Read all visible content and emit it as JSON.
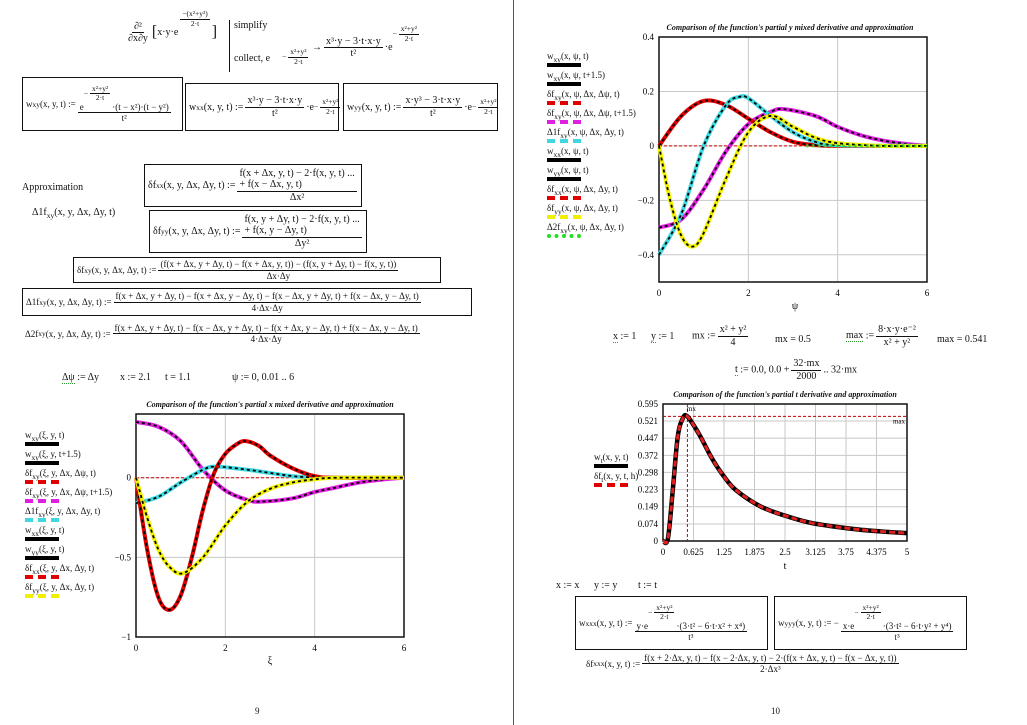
{
  "common": {
    "minus": "−",
    "assign": ":=",
    "dots": "...",
    "arrow": "→",
    "e": "e",
    "dot_e": "·e"
  },
  "page1": {
    "derivation": {
      "op_num": "∂²",
      "op_den": "∂x∂y",
      "body": "x·y·e",
      "exp_num": "−(x²+y²)",
      "exp_den": "2·t",
      "kw1": "simplify",
      "kw2": "collect, e",
      "kw2_exp_num": "x²+y²",
      "kw2_exp_den": "2·t",
      "res_num": "x³·y − 3·t·x·y",
      "res_den": "t²",
      "res_exp_num": "x²+y²",
      "res_exp_den": "2·t"
    },
    "wxy": {
      "f": "w",
      "sub": "xy",
      "args": "(x, y, t) :=",
      "exp_num": "x²+y²",
      "exp_den": "2·t",
      "tail": "·(t − x²)·(t − y²)",
      "den": "t²"
    },
    "wxx": {
      "f": "w",
      "sub": "xx",
      "args": "(x, y, t) :=",
      "num": "x³·y − 3·t·x·y",
      "den": "t²",
      "exp_num": "x²+y²",
      "exp_den": "2·t"
    },
    "wyy": {
      "f": "w",
      "sub": "yy",
      "args": "(x, y, t) :=",
      "num": "x·y³ − 3·t·x·y",
      "den": "t²",
      "exp_num": "x²+y²",
      "exp_den": "2·t"
    },
    "approx_label": "Approximation",
    "delta1_ref": {
      "f": "Δ1f",
      "sub": "xy",
      "args": "(x, y, Δx, Δy, t)"
    },
    "dfxx": {
      "f": "δf",
      "sub": "xx",
      "args": "(x, y, Δx, Δy, t) :=",
      "num1": "f(x + Δx, y, t) − 2·f(x, y, t) ...",
      "num2": "+ f(x − Δx, y, t)",
      "den": "Δx²"
    },
    "dfyy": {
      "f": "δf",
      "sub": "yy",
      "args": "(x, y, Δx, Δy, t) :=",
      "num1": "f(x, y + Δy, t) − 2·f(x, y, t) ...",
      "num2": "+ f(x, y − Δy, t)",
      "den": "Δy²"
    },
    "dfxy": {
      "f": "δf",
      "sub": "xy",
      "args": "(x, y, Δx, Δy, t) :=",
      "num": "(f(x + Δx, y + Δy, t) − f(x + Δx, y, t)) − (f(x, y + Δy, t) − f(x, y, t))",
      "den": "Δx·Δy"
    },
    "d1fxy": {
      "f": "Δ1f",
      "sub": "xy",
      "args": "(x, y, Δx, Δy, t) :=",
      "num": "f(x + Δx, y + Δy, t) − f(x + Δx, y − Δy, t) − f(x − Δx, y + Δy, t) + f(x − Δx, y − Δy, t)",
      "den": "4·Δx·Δy"
    },
    "d2fxy": {
      "f": "Δ2f",
      "sub": "xy",
      "args": "(x, y, Δx, Δy, t) :=",
      "num": "f(x + Δx, y + Δy, t) − f(x − Δx, y + Δy, t) − f(x + Δx, y − Δy, t) + f(x − Δx, y − Δy, t)",
      "den": "4·Δx·Δy"
    },
    "defs": {
      "dpsi_lhs": "Δψ",
      "dpsi_rhs": " := Δy",
      "x": "x := 2.1",
      "t": "t = 1.1",
      "psi": "ψ := 0, 0.01 .. 6"
    },
    "page_number": "9"
  },
  "page2": {
    "defs": {
      "x_lhs": "x",
      "x_rhs": " := 1",
      "y_lhs": "y",
      "y_rhs": " := 1",
      "mx_lhs": "mx :=",
      "mx_num": "x² + y²",
      "mx_den": "4",
      "mx_val": "mx = 0.5",
      "max_lhs": "max",
      "max_assign": " :=",
      "max_num": "8·x·y·e⁻²",
      "max_den": "x² + y²",
      "max_val": "max = 0.541",
      "t_lhs": "t",
      "t_rhs1": " := 0.0, 0.0 +",
      "t_num": "32·mx",
      "t_den": "2000",
      "t_rhs2": ".. 32·mx"
    },
    "redefs": {
      "x": "x := x",
      "y": "y := y",
      "t": "t := t"
    },
    "wxxx": {
      "f": "w",
      "sub": "xxx",
      "args": "(x, y, t) :=",
      "pre": "y·e",
      "exp_num": "x²+y²",
      "exp_den": "2·t",
      "tail": "·(3·t² − 6·t·x² + x⁴)",
      "den": "t³"
    },
    "wyyy": {
      "f": "w",
      "sub": "yyy",
      "args": "(x, y, t) := −",
      "pre": "x·e",
      "exp_num": "x²+y²",
      "exp_den": "2·t",
      "tail": "·(3·t² − 6·t·y² + y⁴)",
      "den": "t³"
    },
    "dfxxx": {
      "f": "δf",
      "sub": "xxx",
      "args": "(x, y, t) :=",
      "num": "f(x + 2·Δx, y, t) − f(x − 2·Δx, y, t) − 2·(f(x + Δx, y, t) − f(x − Δx, y, t))",
      "den": "2·Δx³"
    },
    "page_number": "10"
  },
  "chart_data": [
    {
      "type": "line",
      "title": "Comparison of the function's partial x mixed derivative and approximation",
      "xlabel": "ξ",
      "xlim": [
        0,
        6
      ],
      "ylim": [
        -1,
        0.4
      ],
      "xticks": [
        "0",
        "2",
        "4",
        "6"
      ],
      "yticks": [
        "0",
        "−0.5",
        "−1"
      ],
      "ytick_values": [
        0,
        -0.5,
        -1
      ],
      "xtick_values": [
        0,
        2,
        4,
        6
      ],
      "grid": true,
      "legend_position": "left",
      "legend": [
        {
          "f": "w",
          "sub": "xy",
          "args": "(ξ, y, t)",
          "color": "#000000",
          "style": "solid"
        },
        {
          "f": "w",
          "sub": "xy",
          "args": "(ξ, y, t+1.5)",
          "color": "#000000",
          "style": "solid"
        },
        {
          "f": "δf",
          "sub": "xy",
          "args": "(ξ, y, Δx, Δψ, t)",
          "color": "#e00000",
          "style": "dash"
        },
        {
          "f": "δf",
          "sub": "xy",
          "args": "(ξ, y, Δx, Δψ, t+1.5)",
          "color": "#e020e0",
          "style": "dash"
        },
        {
          "f": "Δ1f",
          "sub": "xy",
          "args": "(ξ, y, Δx, Δy, t)",
          "color": "#40d8e0",
          "style": "dash"
        },
        {
          "f": "w",
          "sub": "xx",
          "args": "(ξ, y, t)",
          "color": "#000000",
          "style": "solid"
        },
        {
          "f": "w",
          "sub": "yy",
          "args": "(ξ, y, t)",
          "color": "#000000",
          "style": "solid"
        },
        {
          "f": "δf",
          "sub": "xx",
          "args": "(ξ, y, Δx, Δy, t)",
          "color": "#e00000",
          "style": "dash"
        },
        {
          "f": "δf",
          "sub": "yy",
          "args": "(ξ, y, Δx, Δy, t)",
          "color": "#f0f000",
          "style": "dash"
        }
      ],
      "curves": [
        {
          "color": "#e020e0",
          "points": [
            [
              0,
              0.35
            ],
            [
              0.5,
              0.32
            ],
            [
              1,
              0.23
            ],
            [
              1.5,
              0.05
            ],
            [
              2,
              -0.08
            ],
            [
              2.5,
              -0.14
            ],
            [
              2.8,
              -0.15
            ],
            [
              3.5,
              -0.13
            ],
            [
              4,
              -0.09
            ],
            [
              4.5,
              -0.06
            ],
            [
              5,
              -0.03
            ],
            [
              5.5,
              -0.012
            ],
            [
              6,
              0
            ]
          ]
        },
        {
          "color": "#40d8e0",
          "points": [
            [
              0,
              -0.16
            ],
            [
              0.5,
              -0.12
            ],
            [
              1,
              -0.03
            ],
            [
              1.5,
              0.05
            ],
            [
              1.8,
              0.07
            ],
            [
              2.5,
              0.05
            ],
            [
              3,
              0.03
            ],
            [
              3.5,
              0.01
            ],
            [
              4,
              0.002
            ],
            [
              5,
              0
            ],
            [
              6,
              0
            ]
          ]
        },
        {
          "color": "#e00000",
          "points": [
            [
              0,
              0
            ],
            [
              0.25,
              -0.45
            ],
            [
              0.5,
              -0.75
            ],
            [
              0.75,
              -0.83
            ],
            [
              1,
              -0.74
            ],
            [
              1.25,
              -0.5
            ],
            [
              1.5,
              -0.2
            ],
            [
              1.75,
              0.03
            ],
            [
              2,
              0.15
            ],
            [
              2.25,
              0.21
            ],
            [
              2.45,
              0.23
            ],
            [
              2.75,
              0.2
            ],
            [
              3,
              0.14
            ],
            [
              3.5,
              0.06
            ],
            [
              4,
              0.01
            ],
            [
              4.5,
              0
            ],
            [
              6,
              0
            ]
          ]
        },
        {
          "color": "#f0f000",
          "points": [
            [
              0,
              0
            ],
            [
              0.25,
              -0.25
            ],
            [
              0.5,
              -0.45
            ],
            [
              0.75,
              -0.56
            ],
            [
              1.05,
              -0.6
            ],
            [
              1.5,
              -0.5
            ],
            [
              2,
              -0.3
            ],
            [
              2.5,
              -0.15
            ],
            [
              3,
              -0.07
            ],
            [
              3.5,
              -0.03
            ],
            [
              4,
              -0.01
            ],
            [
              4.5,
              0
            ],
            [
              6,
              0
            ]
          ]
        }
      ]
    },
    {
      "type": "line",
      "title": "Comparison of the function's partial y mixed derivative and approximation",
      "xlabel": "ψ",
      "xlim": [
        0,
        6
      ],
      "ylim": [
        -0.5,
        0.4
      ],
      "xticks": [
        "0",
        "2",
        "4",
        "6"
      ],
      "xtick_values": [
        0,
        2,
        4,
        6
      ],
      "yticks": [
        "0.4",
        "0.2",
        "0",
        "−0.2",
        "−0.4"
      ],
      "ytick_values": [
        0.4,
        0.2,
        0,
        -0.2,
        -0.4
      ],
      "grid": true,
      "legend_position": "left",
      "legend": [
        {
          "f": "w",
          "sub": "xy",
          "args": "(x, ψ, t)",
          "color": "#000000",
          "style": "solid"
        },
        {
          "f": "w",
          "sub": "xy",
          "args": "(x, ψ, t+1.5)",
          "color": "#000000",
          "style": "solid"
        },
        {
          "f": "δf",
          "sub": "xy",
          "args": "(x, ψ, Δx, Δψ, t)",
          "color": "#e00000",
          "style": "dash"
        },
        {
          "f": "δf",
          "sub": "xy",
          "args": "(x, ψ, Δx, Δψ, t+1.5)",
          "color": "#e020e0",
          "style": "dash"
        },
        {
          "f": "Δ1f",
          "sub": "xy",
          "args": "(x, ψ, Δx, Δy, t)",
          "color": "#40d8e0",
          "style": "dash"
        },
        {
          "f": "w",
          "sub": "xx",
          "args": "(x, ψ, t)",
          "color": "#000000",
          "style": "solid"
        },
        {
          "f": "w",
          "sub": "yy",
          "args": "(x, ψ, t)",
          "color": "#000000",
          "style": "solid"
        },
        {
          "f": "δf",
          "sub": "xx",
          "args": "(x, ψ, Δx, Δy, t)",
          "color": "#e00000",
          "style": "dash"
        },
        {
          "f": "δf",
          "sub": "yy",
          "args": "(x, ψ, Δx, Δy, t)",
          "color": "#f0f000",
          "style": "dash"
        },
        {
          "f": "Δ2f",
          "sub": "xy",
          "args": "(x, ψ, Δx, Δy, t)",
          "color": "#20e020",
          "style": "dot"
        }
      ],
      "curves": [
        {
          "color": "#e020e0",
          "points": [
            [
              0,
              -0.3
            ],
            [
              0.5,
              -0.27
            ],
            [
              1,
              -0.16
            ],
            [
              1.5,
              -0.02
            ],
            [
              2,
              0.08
            ],
            [
              2.5,
              0.125
            ],
            [
              2.8,
              0.135
            ],
            [
              3.5,
              0.11
            ],
            [
              4,
              0.07
            ],
            [
              4.5,
              0.04
            ],
            [
              5,
              0.02
            ],
            [
              5.5,
              0.008
            ],
            [
              6,
              0
            ]
          ]
        },
        {
          "color": "#e00000",
          "points": [
            [
              0,
              0
            ],
            [
              0.5,
              0.11
            ],
            [
              1,
              0.165
            ],
            [
              1.5,
              0.15
            ],
            [
              2,
              0.1
            ],
            [
              2.5,
              0.05
            ],
            [
              3,
              0.015
            ],
            [
              3.5,
              0.003
            ],
            [
              4,
              0
            ],
            [
              6,
              0
            ]
          ]
        },
        {
          "color": "#40d8e0",
          "points": [
            [
              0,
              -0.4
            ],
            [
              0.5,
              -0.25
            ],
            [
              1,
              0
            ],
            [
              1.5,
              0.15
            ],
            [
              1.8,
              0.18
            ],
            [
              2,
              0.175
            ],
            [
              2.5,
              0.11
            ],
            [
              3,
              0.05
            ],
            [
              3.5,
              0.015
            ],
            [
              4,
              0.003
            ],
            [
              6,
              0
            ]
          ]
        },
        {
          "color": "#f0f000",
          "points": [
            [
              0,
              0
            ],
            [
              0.25,
              -0.2
            ],
            [
              0.5,
              -0.33
            ],
            [
              0.75,
              -0.37
            ],
            [
              1,
              -0.32
            ],
            [
              1.5,
              -0.12
            ],
            [
              2,
              0.05
            ],
            [
              2.5,
              0.11
            ],
            [
              3,
              0.07
            ],
            [
              3.5,
              0.03
            ],
            [
              4,
              0.01
            ],
            [
              5,
              0
            ],
            [
              6,
              0
            ]
          ]
        }
      ]
    },
    {
      "type": "line",
      "title": "Comparison of the function's partial t derivative and approximation",
      "xlabel": "t",
      "xlim": [
        0,
        5
      ],
      "ylim": [
        0,
        0.595
      ],
      "xticks": [
        "0",
        "0.625",
        "1.25",
        "1.875",
        "2.5",
        "3.125",
        "3.75",
        "4.375",
        "5"
      ],
      "xtick_values": [
        0,
        0.625,
        1.25,
        1.875,
        2.5,
        3.125,
        3.75,
        4.375,
        5
      ],
      "yticks": [
        "0",
        "0.074",
        "0.149",
        "0.223",
        "0.298",
        "0.372",
        "0.447",
        "0.521",
        "0.595"
      ],
      "ytick_values": [
        0,
        0.074,
        0.149,
        0.223,
        0.298,
        0.372,
        0.447,
        0.521,
        0.595
      ],
      "grid": true,
      "legend_position": "left",
      "markers": {
        "x_marker": 0.5,
        "x_marker_label": "mx",
        "y_marker": 0.541,
        "y_marker_label": "max"
      },
      "legend": [
        {
          "f": "w",
          "sub": "t",
          "args": "(x, y, t)",
          "color": "#000000",
          "style": "solid"
        },
        {
          "f": "δf",
          "sub": "t",
          "args": "(x, y, t, h)",
          "color": "#e00000",
          "style": "dash"
        }
      ],
      "curves": [
        {
          "color": "#000000",
          "points": [
            [
              0,
              0
            ],
            [
              0.1,
              0.01
            ],
            [
              0.2,
              0.22
            ],
            [
              0.3,
              0.45
            ],
            [
              0.4,
              0.53
            ],
            [
              0.5,
              0.541
            ],
            [
              0.75,
              0.46
            ],
            [
              1,
              0.36
            ],
            [
              1.25,
              0.28
            ],
            [
              1.5,
              0.22
            ],
            [
              2,
              0.15
            ],
            [
              2.5,
              0.11
            ],
            [
              3,
              0.08
            ],
            [
              3.5,
              0.063
            ],
            [
              4,
              0.05
            ],
            [
              4.5,
              0.041
            ],
            [
              5,
              0.034
            ]
          ]
        }
      ]
    }
  ]
}
